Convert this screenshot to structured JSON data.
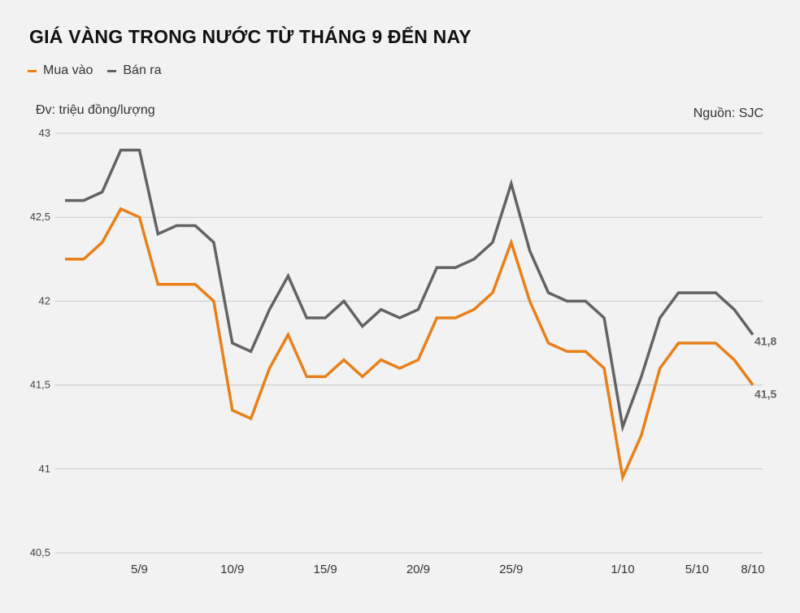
{
  "colors": {
    "buy": "#e8801a",
    "sell": "#636363",
    "grid": "#c8c8c8",
    "background": "#f2f2f2"
  },
  "header": {
    "title": "GIÁ VÀNG TRONG NƯỚC TỪ THÁNG 9 ĐẾN NAY",
    "unit": "Đv: triệu đồng/lượng",
    "source": "Nguồn: SJC"
  },
  "legend": [
    {
      "label": "Mua vào",
      "color": "#e8801a"
    },
    {
      "label": "Bán ra",
      "color": "#636363"
    }
  ],
  "chart_data": {
    "type": "line",
    "title": "GIÁ VÀNG TRONG NƯỚC TỪ THÁNG 9 ĐẾN NAY",
    "ylabel": "Đv: triệu đồng/lượng",
    "xlabel": "",
    "ylim": [
      40.5,
      43
    ],
    "yticks": [
      40.5,
      41,
      41.5,
      42,
      42.5,
      43
    ],
    "ytick_labels": [
      "40,5",
      "41",
      "41,5",
      "42",
      "42,5",
      "43"
    ],
    "grid": true,
    "legend_position": "top-left",
    "x_tick_labels": [
      {
        "index": 4,
        "label": "5/9"
      },
      {
        "index": 9,
        "label": "10/9"
      },
      {
        "index": 14,
        "label": "15/9"
      },
      {
        "index": 19,
        "label": "20/9"
      },
      {
        "index": 24,
        "label": "25/9"
      },
      {
        "index": 30,
        "label": "1/10"
      },
      {
        "index": 34,
        "label": "5/10"
      },
      {
        "index": 37,
        "label": "8/10"
      }
    ],
    "series": [
      {
        "name": "Mua vào",
        "color": "#e8801a",
        "values": [
          42.25,
          42.25,
          42.35,
          42.55,
          42.5,
          42.1,
          42.1,
          42.1,
          42.0,
          41.35,
          41.3,
          41.6,
          41.8,
          41.55,
          41.55,
          41.65,
          41.55,
          41.65,
          41.6,
          41.65,
          41.9,
          41.9,
          41.95,
          42.05,
          42.35,
          42.0,
          41.75,
          41.7,
          41.7,
          41.6,
          40.95,
          41.2,
          41.6,
          41.75,
          41.75,
          41.75,
          41.65,
          41.5
        ],
        "end_label": "41,5"
      },
      {
        "name": "Bán ra",
        "color": "#636363",
        "values": [
          42.6,
          42.6,
          42.65,
          42.9,
          42.9,
          42.4,
          42.45,
          42.45,
          42.35,
          41.75,
          41.7,
          41.95,
          42.15,
          41.9,
          41.9,
          42.0,
          41.85,
          41.95,
          41.9,
          41.95,
          42.2,
          42.2,
          42.25,
          42.35,
          42.7,
          42.3,
          42.05,
          42.0,
          42.0,
          41.9,
          41.25,
          41.55,
          41.9,
          42.05,
          42.05,
          42.05,
          41.95,
          41.8
        ],
        "end_label": "41,8"
      }
    ]
  }
}
